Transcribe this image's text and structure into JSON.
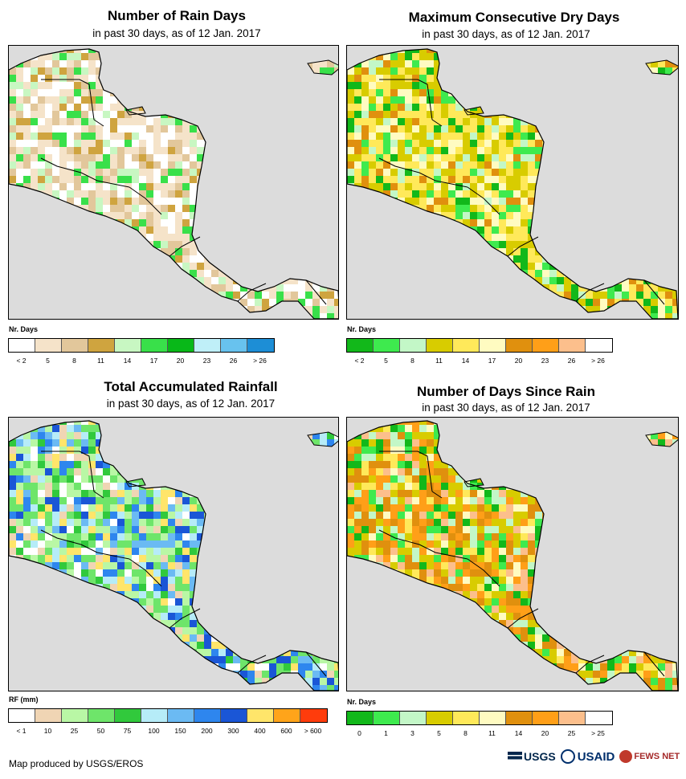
{
  "credit": "Map produced by USGS/EROS",
  "logos": {
    "usgs": "USGS",
    "usaid": "USAID",
    "fews": "FEWS NET"
  },
  "panels": [
    {
      "title": "Number of Rain Days",
      "subtitle": "in past 30 days, as of 12 Jan. 2017",
      "legend_label": "Nr. Days",
      "legend_colors": [
        "#ffffff",
        "#f5e3c9",
        "#e2c79b",
        "#cfa43f",
        "#c8f7c2",
        "#39e04a",
        "#08b818",
        "#bfeff8",
        "#68c2ee",
        "#1d8ed6"
      ],
      "legend_ticks": [
        "< 2",
        "5",
        "8",
        "11",
        "14",
        "17",
        "20",
        "23",
        "26",
        "> 26"
      ]
    },
    {
      "title": "Maximum Consecutive Dry Days",
      "subtitle": "in past 30 days, as of 12 Jan. 2017",
      "legend_label": "Nr. Days",
      "legend_colors": [
        "#12b81a",
        "#3eea4e",
        "#c3f7c7",
        "#d8cc00",
        "#ffe95a",
        "#fffbc1",
        "#e0900e",
        "#ff9f18",
        "#fcbf8c",
        "#ffffff"
      ],
      "legend_ticks": [
        "< 2",
        "5",
        "8",
        "11",
        "14",
        "17",
        "20",
        "23",
        "26",
        "> 26"
      ]
    },
    {
      "title": "Total Accumulated Rainfall",
      "subtitle": "in past 30 days, as of 12 Jan. 2017",
      "legend_label": "RF (mm)",
      "legend_colors": [
        "#ffffff",
        "#f0d5b4",
        "#b9f7a5",
        "#6ee56a",
        "#31c93c",
        "#b6ecf8",
        "#6bbaf3",
        "#2e86ee",
        "#1a56d6",
        "#ffe56a",
        "#ffa41a",
        "#ff3c0c"
      ],
      "legend_ticks": [
        "< 1",
        "10",
        "25",
        "50",
        "75",
        "100",
        "150",
        "200",
        "300",
        "400",
        "600",
        "> 600"
      ]
    },
    {
      "title": "Number of Days Since Rain",
      "subtitle": "in past 30 days, as of 12 Jan. 2017",
      "legend_label": "Nr. Days",
      "legend_colors": [
        "#12b81a",
        "#3eea4e",
        "#c3f7c7",
        "#d8cc00",
        "#ffe95a",
        "#fffbc1",
        "#e0900e",
        "#ff9f18",
        "#fcbf8c",
        "#ffffff"
      ],
      "legend_ticks": [
        "0",
        "1",
        "3",
        "5",
        "8",
        "11",
        "14",
        "20",
        "25",
        "> 25"
      ]
    }
  ]
}
